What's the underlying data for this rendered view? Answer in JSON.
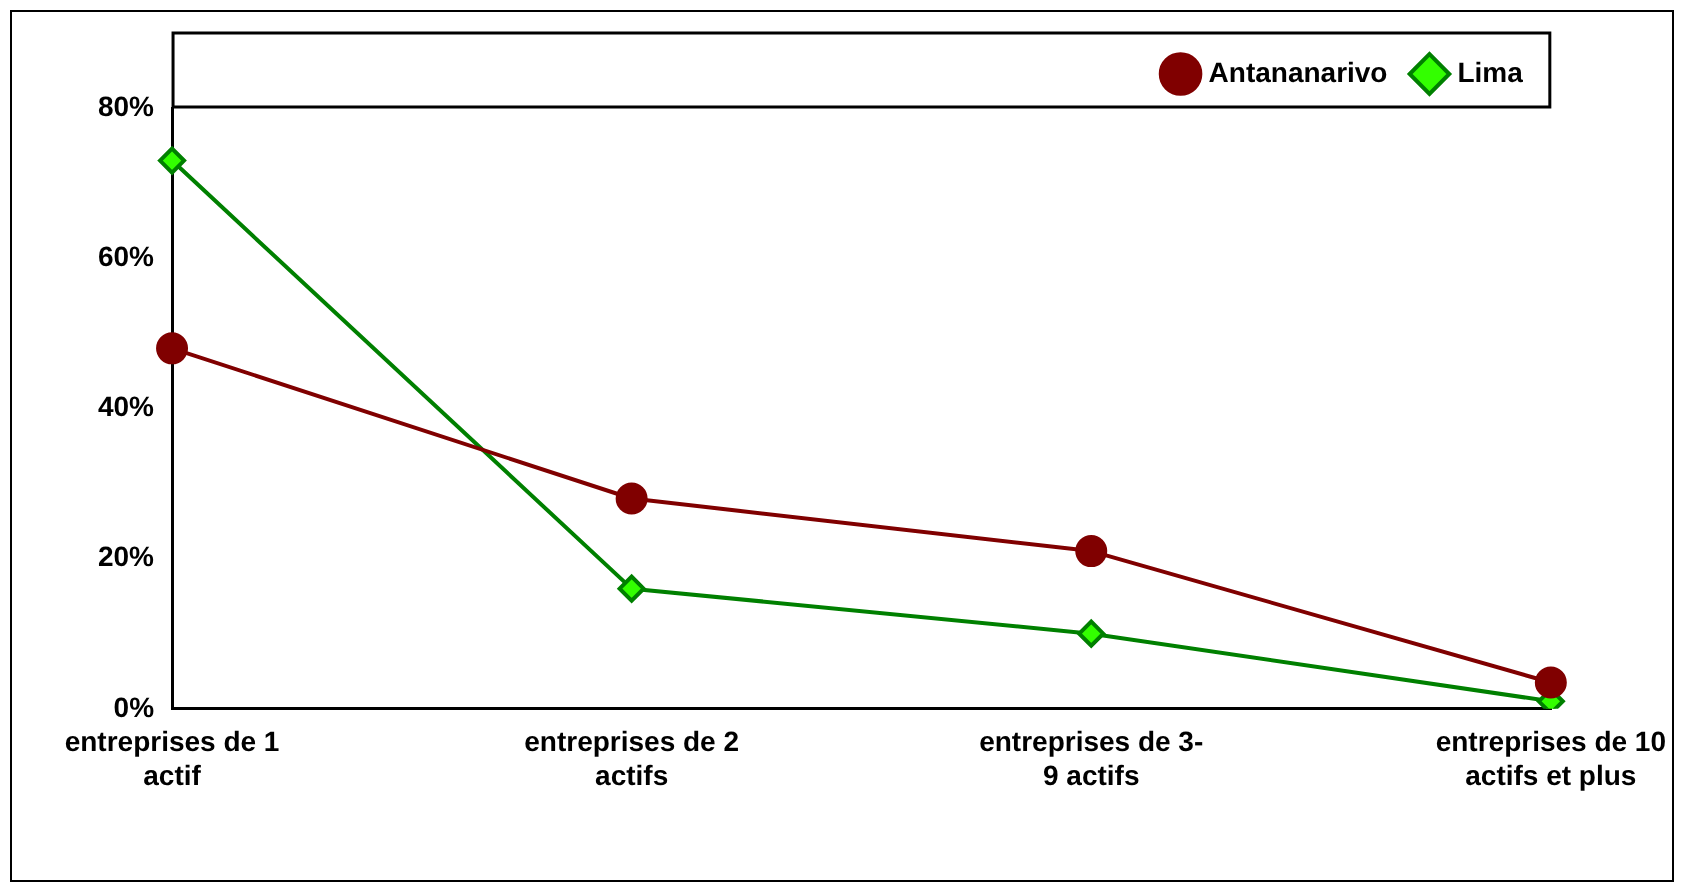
{
  "chart_data": {
    "type": "line",
    "categories": [
      "entreprises de 1\nactif",
      "entreprises de 2\nactifs",
      "entreprises de 3-\n9 actifs",
      "entreprises de 10\nactifs et plus"
    ],
    "series": [
      {
        "name": "Antananarivo",
        "color": "#800000",
        "marker": "circle",
        "values": [
          48,
          28,
          21,
          3.5
        ]
      },
      {
        "name": "Lima",
        "color": "#008000",
        "marker": "diamond",
        "values": [
          73,
          16,
          10,
          1
        ]
      }
    ],
    "ylim": [
      0,
      80
    ],
    "yticks": [
      {
        "value": 0,
        "label": "0%"
      },
      {
        "value": 20,
        "label": "20%"
      },
      {
        "value": 40,
        "label": "40%"
      },
      {
        "value": 60,
        "label": "60%"
      },
      {
        "value": 80,
        "label": "80%"
      }
    ],
    "grid": false,
    "legend": "top right",
    "line_style": "solid"
  }
}
